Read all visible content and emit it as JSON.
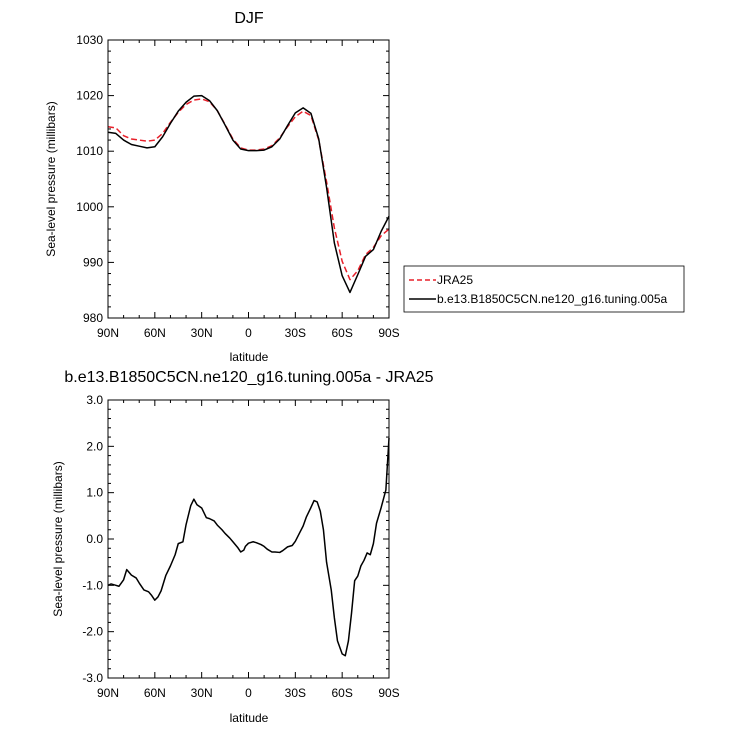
{
  "colors": {
    "model": "#000000",
    "obs": "#e8202a",
    "axis": "#000000",
    "background": "#ffffff"
  },
  "chart_data": [
    {
      "type": "line",
      "title": "DJF",
      "xlabel": "latitude",
      "ylabel": "Sea-level pressure (millibars)",
      "xlim": [
        90,
        -90
      ],
      "ylim": [
        980,
        1030
      ],
      "xticks": [
        90,
        60,
        30,
        0,
        -30,
        -60,
        -90
      ],
      "xtick_labels": [
        "90N",
        "60N",
        "30N",
        "0",
        "30S",
        "60S",
        "90S"
      ],
      "yticks": [
        980,
        990,
        1000,
        1010,
        1020,
        1030
      ],
      "ytick_labels": [
        "980",
        "990",
        "1000",
        "1010",
        "1020",
        "1030"
      ],
      "grid": false,
      "legend_position": "outside-right",
      "legend": [
        "JRA25",
        "b.e13.B1850C5CN.ne120_g16.tuning.005a"
      ],
      "series": [
        {
          "name": "JRA25",
          "color": "#e8202a",
          "style": "dashed",
          "x": [
            90,
            85,
            80,
            75,
            70,
            65,
            60,
            55,
            50,
            45,
            40,
            35,
            30,
            25,
            20,
            15,
            10,
            5,
            0,
            -5,
            -10,
            -15,
            -20,
            -25,
            -30,
            -35,
            -40,
            -45,
            -50,
            -55,
            -60,
            -65,
            -70,
            -75,
            -80,
            -85,
            -90
          ],
          "y": [
            1014.4,
            1014.2,
            1012.8,
            1012.2,
            1012.0,
            1011.8,
            1012.0,
            1013.2,
            1015.2,
            1017.0,
            1018.4,
            1019.2,
            1019.4,
            1018.9,
            1017.3,
            1014.8,
            1012.2,
            1010.6,
            1010.2,
            1010.2,
            1010.4,
            1011.0,
            1012.4,
            1014.4,
            1016.2,
            1017.2,
            1016.4,
            1012.0,
            1004.5,
            996.2,
            990.2,
            986.9,
            988.5,
            991.4,
            992.7,
            994.8,
            996.0
          ]
        },
        {
          "name": "b.e13.B1850C5CN.ne120_g16.tuning.005a",
          "color": "#000000",
          "style": "solid",
          "x": [
            90,
            85,
            80,
            75,
            70,
            65,
            60,
            55,
            50,
            45,
            40,
            35,
            30,
            25,
            20,
            15,
            10,
            5,
            0,
            -5,
            -10,
            -15,
            -20,
            -25,
            -30,
            -35,
            -40,
            -45,
            -50,
            -55,
            -60,
            -65,
            -70,
            -75,
            -80,
            -85,
            -90
          ],
          "y": [
            1013.4,
            1013.2,
            1012.0,
            1011.2,
            1010.9,
            1010.6,
            1010.8,
            1012.6,
            1015.0,
            1017.2,
            1018.8,
            1019.9,
            1020.0,
            1019.1,
            1017.3,
            1014.7,
            1012.0,
            1010.4,
            1010.1,
            1010.1,
            1010.2,
            1010.8,
            1012.2,
            1014.6,
            1016.9,
            1017.8,
            1016.8,
            1012.2,
            1003.5,
            993.5,
            987.6,
            984.6,
            987.8,
            991.1,
            992.3,
            995.6,
            998.3
          ]
        }
      ]
    },
    {
      "type": "line",
      "title": "b.e13.B1850C5CN.ne120_g16.tuning.005a - JRA25",
      "xlabel": "latitude",
      "ylabel": "Sea-level pressure (millibars)",
      "xlim": [
        90,
        -90
      ],
      "ylim": [
        -3.0,
        3.0
      ],
      "xticks": [
        90,
        60,
        30,
        0,
        -30,
        -60,
        -90
      ],
      "xtick_labels": [
        "90N",
        "60N",
        "30N",
        "0",
        "30S",
        "60S",
        "90S"
      ],
      "yticks": [
        -3,
        -2,
        -1,
        0,
        1,
        2,
        3
      ],
      "ytick_labels": [
        "-3.0",
        "-2.0",
        "-1.0",
        "0.0",
        "1.0",
        "2.0",
        "3.0"
      ],
      "grid": false,
      "series": [
        {
          "color": "#000000",
          "style": "solid",
          "x": [
            90,
            88,
            85,
            83,
            80,
            78,
            75,
            72,
            70,
            67,
            64,
            62,
            60,
            58,
            56,
            53,
            50,
            47,
            45,
            42,
            40,
            37,
            35,
            33,
            30,
            27,
            25,
            22,
            20,
            17,
            15,
            12,
            10,
            7,
            5,
            3,
            2,
            0,
            -3,
            -5,
            -8,
            -10,
            -12,
            -15,
            -17,
            -20,
            -22,
            -25,
            -28,
            -30,
            -33,
            -35,
            -37,
            -40,
            -42,
            -44,
            -46,
            -48,
            -50,
            -53,
            -55,
            -57,
            -60,
            -62,
            -64,
            -66,
            -68,
            -70,
            -72,
            -74,
            -76,
            -78,
            -80,
            -82,
            -85,
            -88,
            -90
          ],
          "y": [
            -1.0,
            -0.97,
            -1.0,
            -1.02,
            -0.88,
            -0.66,
            -0.78,
            -0.84,
            -0.95,
            -1.1,
            -1.14,
            -1.22,
            -1.32,
            -1.25,
            -1.12,
            -0.79,
            -0.58,
            -0.34,
            -0.1,
            -0.06,
            0.31,
            0.72,
            0.86,
            0.74,
            0.67,
            0.46,
            0.44,
            0.39,
            0.3,
            0.2,
            0.12,
            0.02,
            -0.06,
            -0.18,
            -0.28,
            -0.24,
            -0.16,
            -0.09,
            -0.06,
            -0.08,
            -0.12,
            -0.16,
            -0.22,
            -0.28,
            -0.28,
            -0.29,
            -0.25,
            -0.17,
            -0.14,
            -0.05,
            0.15,
            0.28,
            0.47,
            0.68,
            0.83,
            0.8,
            0.6,
            0.2,
            -0.5,
            -1.1,
            -1.7,
            -2.2,
            -2.48,
            -2.52,
            -2.2,
            -1.6,
            -0.9,
            -0.8,
            -0.58,
            -0.46,
            -0.3,
            -0.34,
            -0.1,
            0.34,
            0.68,
            1.06,
            2.18
          ]
        }
      ]
    }
  ]
}
